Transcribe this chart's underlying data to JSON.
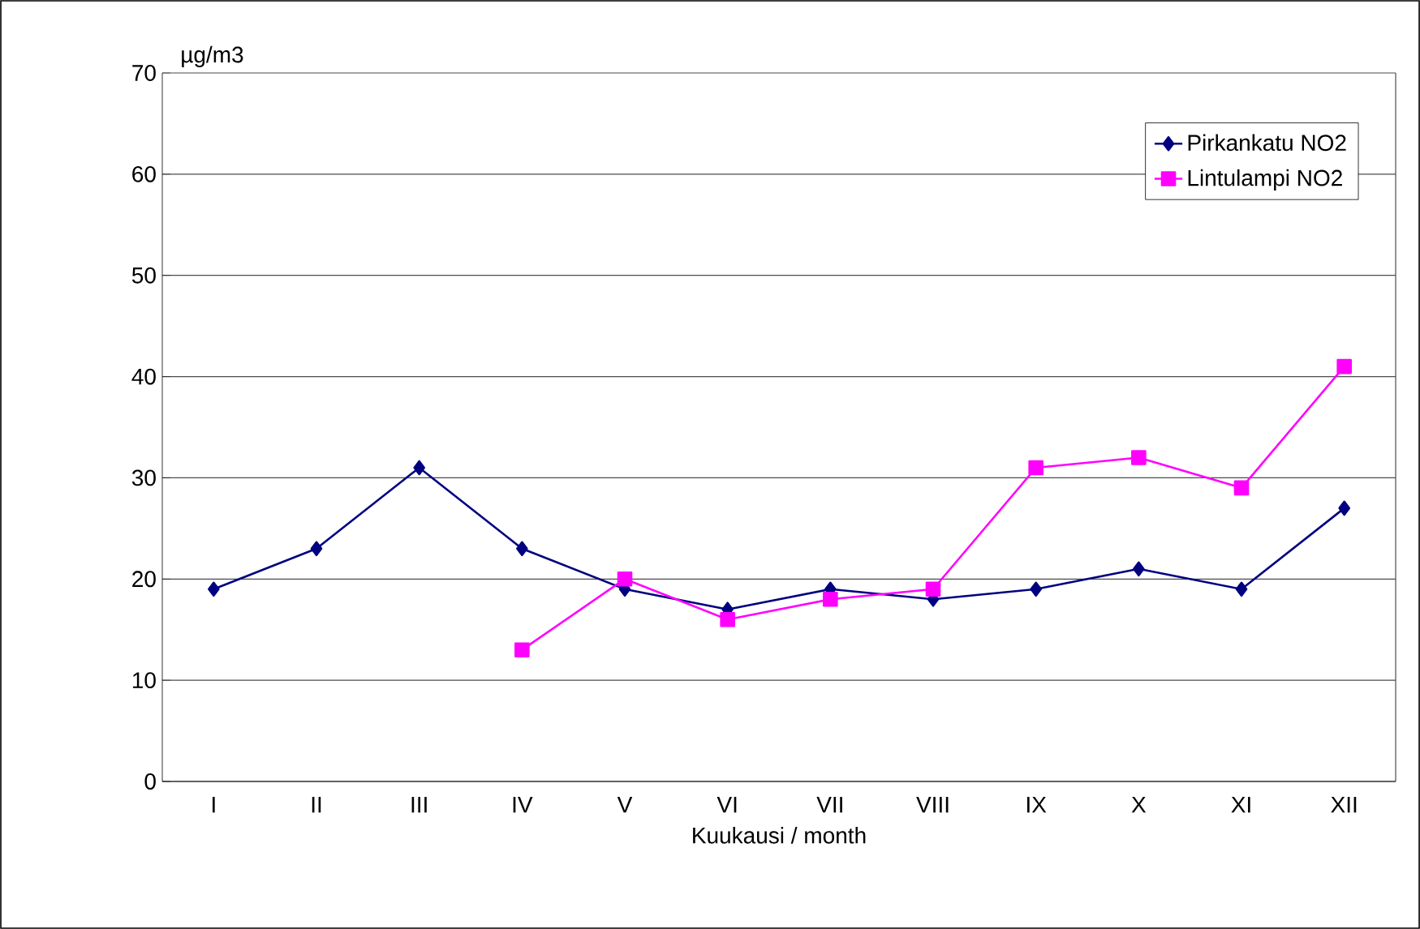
{
  "chart_data": {
    "type": "line",
    "ylabel": "µg/m3",
    "xlabel": "Kuukausi / month",
    "categories": [
      "I",
      "II",
      "III",
      "IV",
      "V",
      "VI",
      "VII",
      "VIII",
      "IX",
      "X",
      "XI",
      "XII"
    ],
    "series": [
      {
        "name": "Pirkankatu  NO2",
        "color": "#000080",
        "marker": "diamond",
        "values": [
          19,
          23,
          31,
          23,
          19,
          17,
          19,
          18,
          19,
          21,
          19,
          27
        ]
      },
      {
        "name": "Lintulampi NO2",
        "color": "#ff00ff",
        "marker": "square",
        "values": [
          null,
          null,
          null,
          13,
          20,
          16,
          18,
          19,
          31,
          32,
          29,
          41
        ]
      }
    ],
    "ylim": [
      0,
      70
    ],
    "yticks": [
      0,
      10,
      20,
      30,
      40,
      50,
      60,
      70
    ],
    "grid": "y",
    "legend": "top right",
    "line_style": "solid"
  }
}
